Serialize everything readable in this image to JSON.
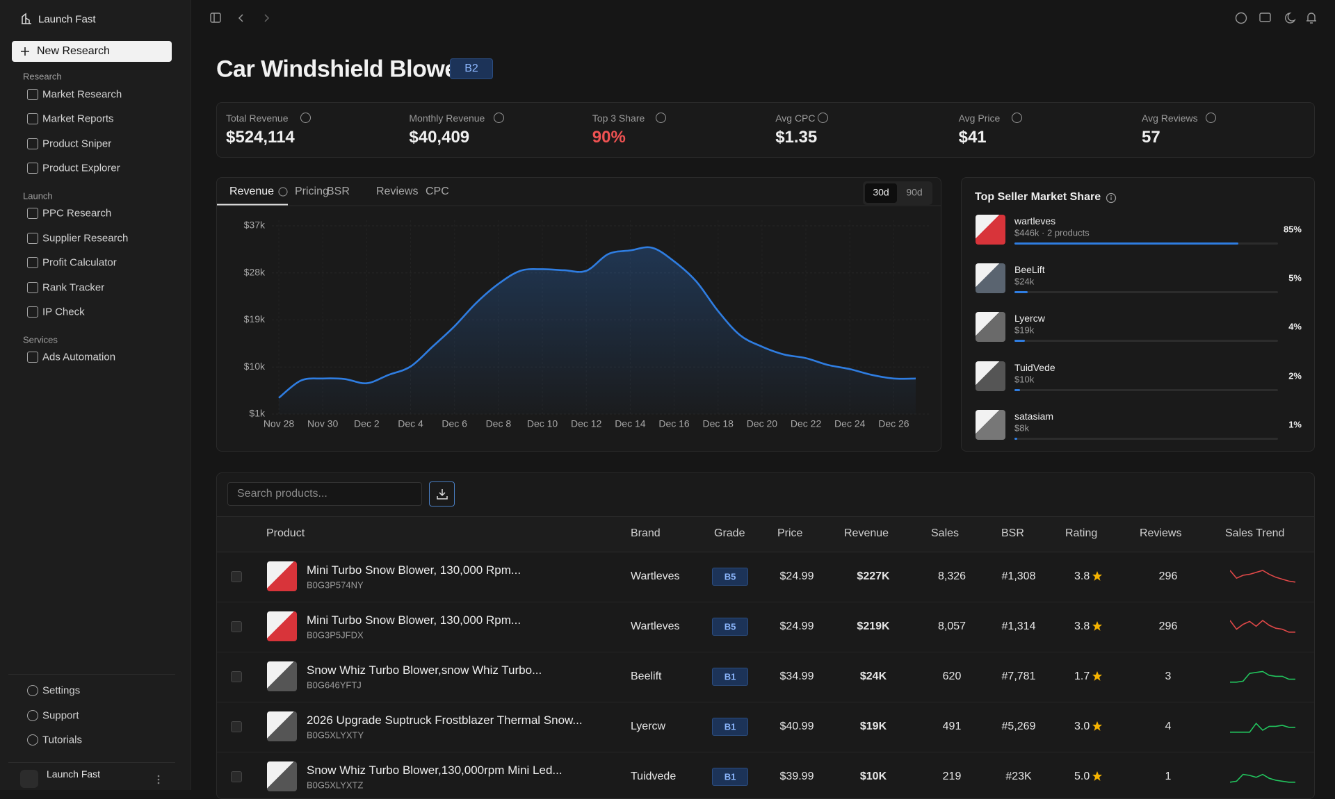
{
  "sidebar": {
    "brand": "Launch Fast",
    "new_button": "New Research",
    "sections": [
      {
        "label": "Research",
        "items": [
          "Market Research",
          "Market Reports",
          "Product Sniper",
          "Product Explorer"
        ]
      },
      {
        "label": "Launch",
        "items": [
          "PPC Research",
          "Supplier Research",
          "Profit Calculator",
          "Rank Tracker",
          "IP Check"
        ]
      },
      {
        "label": "Services",
        "items": [
          "Ads Automation"
        ]
      }
    ],
    "footer_items": [
      "Settings",
      "Support",
      "Tutorials"
    ],
    "user": "Launch Fast"
  },
  "header": {
    "title": "Car Windshield Blower",
    "badge": "B2"
  },
  "metrics": [
    {
      "label": "Total Revenue",
      "value": "$524,114"
    },
    {
      "label": "Monthly Revenue",
      "value": "$40,409"
    },
    {
      "label": "Top 3 Share",
      "value": "90%"
    },
    {
      "label": "Avg CPC",
      "value": "$1.35"
    },
    {
      "label": "Avg Price",
      "value": "$41"
    },
    {
      "label": "Avg Reviews",
      "value": "57"
    }
  ],
  "tabs": [
    "Revenue",
    "Pricing",
    "BSR",
    "Reviews",
    "CPC"
  ],
  "ranges": [
    "30d",
    "90d"
  ],
  "chart_data": {
    "type": "line",
    "categories": [
      "Nov 28",
      null,
      "Nov 30",
      null,
      "Dec 2",
      null,
      "Dec 4",
      null,
      "Dec 6",
      null,
      "Dec 8",
      null,
      "Dec 10",
      null,
      "Dec 12",
      null,
      "Dec 14",
      null,
      "Dec 16",
      null,
      "Dec 18",
      null,
      "Dec 20",
      null,
      "Dec 22",
      null,
      "Dec 24",
      null,
      "Dec 26",
      null
    ],
    "series": [
      {
        "name": "Revenue",
        "color": "#2f7de1",
        "values": [
          4100,
          7400,
          7800,
          7700,
          6900,
          8500,
          10100,
          13900,
          17800,
          22300,
          25900,
          28400,
          28700,
          28500,
          28400,
          31600,
          32300,
          32800,
          30200,
          26400,
          20700,
          16100,
          13900,
          12400,
          11700,
          10400,
          9600,
          8500,
          7800,
          7800
        ]
      }
    ],
    "ylim": [
      1000,
      37000
    ],
    "yticks": [
      {
        "value": 1000,
        "label": "$1k"
      },
      {
        "value": 10000,
        "label": "$10k"
      },
      {
        "value": 19000,
        "label": "$19k"
      },
      {
        "value": 28000,
        "label": "$28k"
      },
      {
        "value": 37000,
        "label": "$37k"
      }
    ],
    "grid": true
  },
  "market_share": {
    "title": "Top Seller Market Share",
    "sellers": [
      {
        "name": "wartleves",
        "detail": "$446k · 2 products",
        "share": 85,
        "share_label": "85%"
      },
      {
        "name": "BeeLift",
        "detail": "$24k",
        "share": 5,
        "share_label": "5%"
      },
      {
        "name": "Lyercw",
        "detail": "$19k",
        "share": 4,
        "share_label": "4%"
      },
      {
        "name": "TuidVede",
        "detail": "$10k",
        "share": 2,
        "share_label": "2%"
      },
      {
        "name": "satasiam",
        "detail": "$8k",
        "share": 1,
        "share_label": "1%"
      }
    ]
  },
  "table": {
    "search_placeholder": "Search products...",
    "columns": [
      "Product",
      "Brand",
      "Grade",
      "Price",
      "Revenue",
      "Sales",
      "BSR",
      "Rating",
      "Reviews",
      "Sales Trend"
    ],
    "rows": [
      {
        "product": "Mini Turbo Snow Blower, 130,000 Rpm...",
        "asin": "B0G3P574NY",
        "brand": "Wartleves",
        "grade": "B5",
        "price": "$24.99",
        "revenue": "$227K",
        "sales": "8,326",
        "bsr": "#1,308",
        "rating": "3.8",
        "reviews": "296"
      },
      {
        "product": "Mini Turbo Snow Blower, 130,000 Rpm...",
        "asin": "B0G3P5JFDX",
        "brand": "Wartleves",
        "grade": "B5",
        "price": "$24.99",
        "revenue": "$219K",
        "sales": "8,057",
        "bsr": "#1,314",
        "rating": "3.8",
        "reviews": "296"
      },
      {
        "product": "Snow Whiz Turbo Blower,snow Whiz Turbo...",
        "asin": "B0G646YFTJ",
        "brand": "Beelift",
        "grade": "B1",
        "price": "$34.99",
        "revenue": "$24K",
        "sales": "620",
        "bsr": "#7,781",
        "rating": "1.7",
        "reviews": "3"
      },
      {
        "product": "2026 Upgrade Suptruck Frostblazer Thermal Snow...",
        "asin": "B0G5XLYXTY",
        "brand": "Lyercw",
        "grade": "B1",
        "price": "$40.99",
        "revenue": "$19K",
        "sales": "491",
        "bsr": "#5,269",
        "rating": "3.0",
        "reviews": "4"
      },
      {
        "product": "Snow Whiz Turbo Blower,130,000rpm Mini Led...",
        "asin": "B0G5XLYXTZ",
        "brand": "Tuidvede",
        "grade": "B1",
        "price": "$39.99",
        "revenue": "$10K",
        "sales": "219",
        "bsr": "#23K",
        "rating": "5.0",
        "reviews": "1"
      }
    ]
  }
}
